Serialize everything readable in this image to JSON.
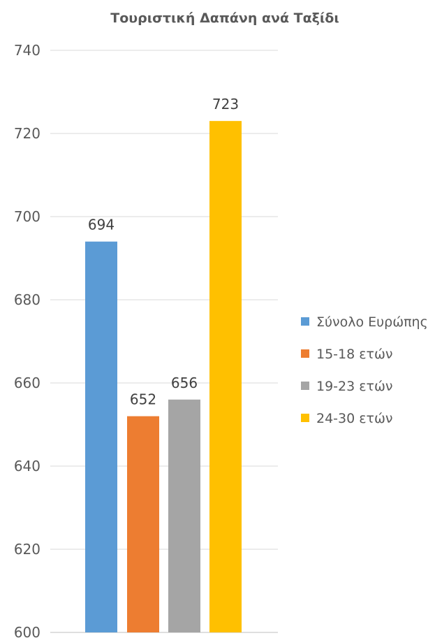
{
  "chart_data": {
    "type": "bar",
    "title": "Τουριστική Δαπάνη ανά Ταξίδι",
    "xlabel": "",
    "ylabel": "",
    "ylim": [
      600,
      740
    ],
    "yticks": [
      600,
      620,
      640,
      660,
      680,
      700,
      720,
      740
    ],
    "grid": true,
    "legend_position": "right",
    "categories": [
      ""
    ],
    "series": [
      {
        "name": "Σύνολο Ευρώπης",
        "values": [
          694
        ],
        "color": "#5b9bd5"
      },
      {
        "name": "15-18 ετών",
        "values": [
          652
        ],
        "color": "#ed7d31"
      },
      {
        "name": "19-23 ετών",
        "values": [
          656
        ],
        "color": "#a5a5a5"
      },
      {
        "name": "24-30 ετών",
        "values": [
          723
        ],
        "color": "#ffc000"
      }
    ],
    "data_labels": [
      "694",
      "652",
      "656",
      "723"
    ]
  }
}
